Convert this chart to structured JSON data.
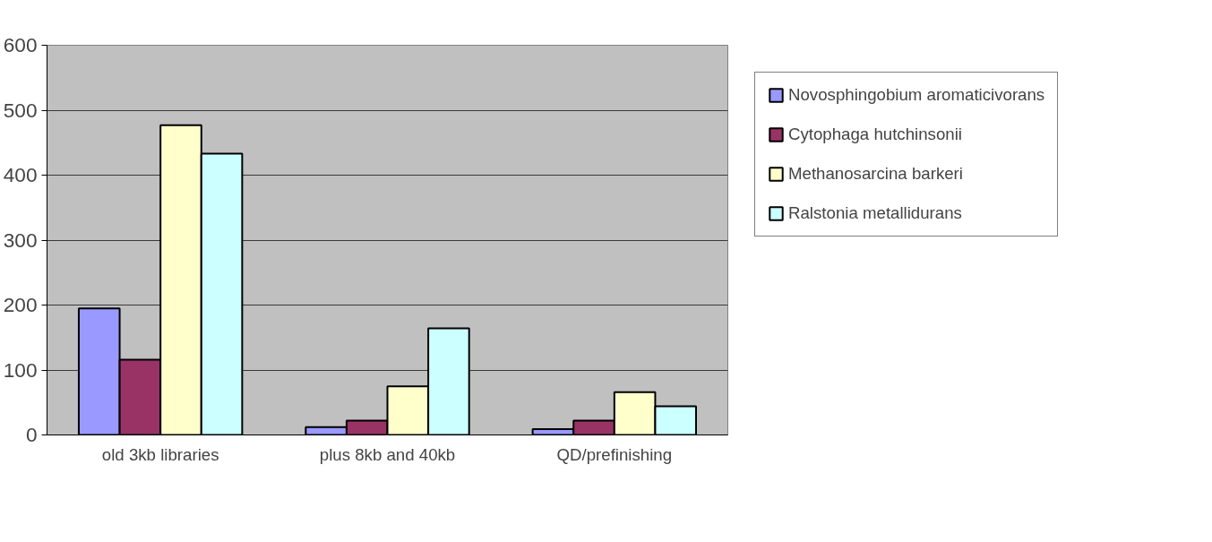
{
  "chart_data": {
    "type": "bar",
    "categories": [
      "old 3kb libraries",
      "plus 8kb and 40kb",
      "QD/prefinishing"
    ],
    "series": [
      {
        "name": "Novosphingobium aromaticivorans",
        "color": "#9999ff",
        "values": [
          195,
          12,
          9
        ]
      },
      {
        "name": "Cytophaga hutchinsonii",
        "color": "#993366",
        "values": [
          116,
          22,
          22
        ]
      },
      {
        "name": "Methanosarcina barkeri",
        "color": "#ffffcc",
        "values": [
          477,
          75,
          66
        ]
      },
      {
        "name": "Ralstonia metallidurans",
        "color": "#ccffff",
        "values": [
          433,
          164,
          44
        ]
      }
    ],
    "ylim": [
      0,
      600
    ],
    "yticks": [
      0,
      100,
      200,
      300,
      400,
      500,
      600
    ],
    "grid": "y",
    "legend": "right"
  }
}
